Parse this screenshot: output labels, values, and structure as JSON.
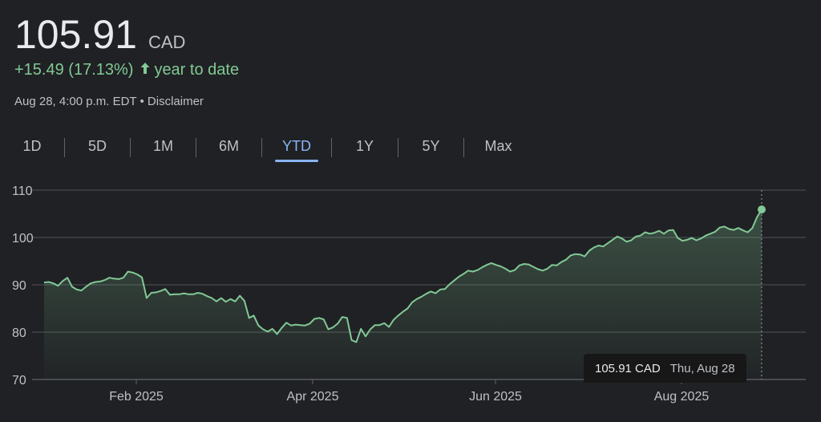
{
  "header": {
    "price": "105.91",
    "currency": "CAD",
    "change": "+15.49 (17.13%)",
    "change_arrow": "🡑",
    "change_suffix": "year to date",
    "timestamp": "Aug 28, 4:00 p.m. EDT",
    "bullet": "•",
    "disclaimer": "Disclaimer"
  },
  "tabs": [
    {
      "label": "1D",
      "active": false
    },
    {
      "label": "5D",
      "active": false
    },
    {
      "label": "1M",
      "active": false
    },
    {
      "label": "6M",
      "active": false
    },
    {
      "label": "YTD",
      "active": true
    },
    {
      "label": "1Y",
      "active": false
    },
    {
      "label": "5Y",
      "active": false
    },
    {
      "label": "Max",
      "active": false
    }
  ],
  "tooltip": {
    "value": "105.91 CAD",
    "date": "Thu, Aug 28"
  },
  "colors": {
    "line": "#81c995",
    "accent": "#8ab4f8",
    "grid": "#5f6368",
    "text": "#bdc1c6"
  },
  "chart_data": {
    "type": "area",
    "x_range": [
      "2025-01-02",
      "2025-08-28"
    ],
    "ylim": [
      70,
      110
    ],
    "yticks": [
      70,
      80,
      90,
      100,
      110
    ],
    "xtick_labels": [
      "Feb 2025",
      "Apr 2025",
      "Jun 2025",
      "Aug 2025"
    ],
    "grid": true,
    "series": [
      {
        "values": [
          90.5,
          90.6,
          90.3,
          89.8,
          90.8,
          91.5,
          89.6,
          89.0,
          88.8,
          89.6,
          90.3,
          90.6,
          90.7,
          91.0,
          91.5,
          91.3,
          91.2,
          91.5,
          92.8,
          92.6,
          92.2,
          91.6,
          87.2,
          88.3,
          88.4,
          88.7,
          89.1,
          87.9,
          88.0,
          88.0,
          88.2,
          88.0,
          88.0,
          88.3,
          88.1,
          87.6,
          87.2,
          86.5,
          87.2,
          86.4,
          87.0,
          86.5,
          87.7,
          86.6,
          83.0,
          83.5,
          81.4,
          80.6,
          80.1,
          80.7,
          79.6,
          80.9,
          82.0,
          81.4,
          81.6,
          81.5,
          81.4,
          81.8,
          82.8,
          83.0,
          82.7,
          80.6,
          81.0,
          81.8,
          83.2,
          83.0,
          78.3,
          77.9,
          80.7,
          79.1,
          80.6,
          81.5,
          81.5,
          81.9,
          81.1,
          82.6,
          83.5,
          84.3,
          85.0,
          86.3,
          87.0,
          87.5,
          88.1,
          88.6,
          88.2,
          89.0,
          89.1,
          90.1,
          90.9,
          91.7,
          92.3,
          93.0,
          92.8,
          93.1,
          93.7,
          94.2,
          94.6,
          94.2,
          93.9,
          93.4,
          92.8,
          93.1,
          94.1,
          94.4,
          94.3,
          93.8,
          93.3,
          93.0,
          93.4,
          94.2,
          94.1,
          94.8,
          95.3,
          96.2,
          96.5,
          96.4,
          96.0,
          97.2,
          97.9,
          98.3,
          98.1,
          98.8,
          99.5,
          100.2,
          99.8,
          99.1,
          99.4,
          100.2,
          100.4,
          101.1,
          100.8,
          101.0,
          101.4,
          100.8,
          101.5,
          101.6,
          99.9,
          99.3,
          99.5,
          99.9,
          99.4,
          99.8,
          100.4,
          100.8,
          101.2,
          102.1,
          102.3,
          101.8,
          101.6,
          102.0,
          101.5,
          101.1,
          102.0,
          104.3,
          105.91
        ]
      }
    ]
  }
}
